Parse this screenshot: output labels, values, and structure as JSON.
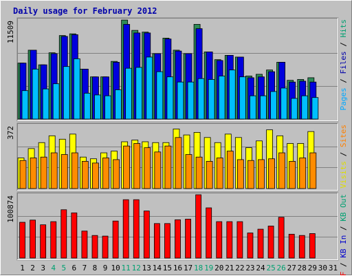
{
  "chart_data": {
    "type": "bar",
    "title": "Daily usage for February 2012",
    "categories": [
      "1",
      "2",
      "3",
      "4",
      "5",
      "6",
      "7",
      "8",
      "9",
      "10",
      "11",
      "12",
      "13",
      "14",
      "15",
      "16",
      "17",
      "18",
      "19",
      "20",
      "21",
      "22",
      "23",
      "24",
      "25",
      "26",
      "27",
      "28",
      "29",
      "30",
      "31"
    ],
    "weekend_days": [
      "4",
      "5",
      "11",
      "12",
      "18",
      "19",
      "25",
      "26"
    ],
    "panels": [
      {
        "name": "hits",
        "ymax_label": "11509",
        "ylim": [
          0,
          11509
        ],
        "right_labels": [
          {
            "text": "Pages",
            "color": "#00a8ff"
          },
          {
            "text": " / ",
            "color": "#000000"
          },
          {
            "text": "Files",
            "color": "#0000aa"
          },
          {
            "text": " / ",
            "color": "#000000"
          },
          {
            "text": "Hits",
            "color": "#00a070"
          }
        ],
        "series": [
          {
            "name": "Hits",
            "color": "#2e8b57",
            "values": [
              6500,
              8000,
              6300,
              7700,
              9700,
              9900,
              5800,
              4900,
              4900,
              6700,
              11500,
              10300,
              10100,
              7600,
              9400,
              8000,
              7600,
              11000,
              7800,
              6900,
              7400,
              7200,
              5000,
              5200,
              5700,
              6600,
              4500,
              4600,
              4800,
              null,
              null
            ]
          },
          {
            "name": "Files",
            "color": "#0000dd",
            "values": [
              6500,
              8000,
              6300,
              7600,
              9600,
              9800,
              5800,
              4900,
              4900,
              6600,
              11000,
              10000,
              10000,
              7600,
              9300,
              7900,
              7600,
              10500,
              7800,
              6800,
              7400,
              7200,
              4800,
              4900,
              5500,
              6600,
              4300,
              4400,
              4300,
              null,
              null
            ]
          },
          {
            "name": "Pages",
            "color": "#00bfff",
            "values": [
              3300,
              5800,
              3500,
              4100,
              6100,
              7000,
              3000,
              2800,
              2700,
              3400,
              5900,
              6000,
              7200,
              5500,
              4900,
              4300,
              4300,
              4700,
              4600,
              5000,
              5700,
              4900,
              2700,
              2700,
              3200,
              3600,
              2400,
              2700,
              2500,
              null,
              null
            ]
          }
        ]
      },
      {
        "name": "visits",
        "ymax_label": "372",
        "ylim": [
          0,
          372
        ],
        "right_labels": [
          {
            "text": "Visits",
            "color": "#dddd00"
          },
          {
            "text": " / ",
            "color": "#000000"
          },
          {
            "text": "Sites",
            "color": "#ff8000"
          }
        ],
        "series": [
          {
            "name": "Visits",
            "color": "#ffff00",
            "values": [
              180,
              235,
              270,
              310,
              290,
              320,
              185,
              175,
              210,
              220,
              275,
              285,
              275,
              270,
              270,
              350,
              315,
              330,
              300,
              270,
              320,
              300,
              240,
              280,
              345,
              310,
              265,
              265,
              335,
              null,
              null
            ]
          },
          {
            "name": "Sites",
            "color": "#ff8c00",
            "values": [
              165,
              180,
              185,
              210,
              200,
              210,
              160,
              150,
              180,
              170,
              250,
              265,
              240,
              215,
              250,
              300,
              200,
              185,
              160,
              180,
              220,
              170,
              165,
              170,
              175,
              210,
              160,
              180,
              210,
              null,
              null
            ]
          }
        ]
      },
      {
        "name": "kbytes",
        "ymax_label": "100874",
        "ylim": [
          0,
          100874
        ],
        "right_labels": [
          {
            "text": "KB F",
            "color": "#ee0000"
          },
          {
            "text": " / ",
            "color": "#000000"
          },
          {
            "text": "KB In",
            "color": "#0000cc"
          },
          {
            "text": " / ",
            "color": "#000000"
          },
          {
            "text": "KB Out",
            "color": "#00a070"
          }
        ],
        "series": [
          {
            "name": "KB F",
            "color": "#ff0000",
            "values": [
              57000,
              60500,
              53000,
              58000,
              77000,
              72000,
              43000,
              36000,
              35000,
              59000,
              93000,
              93000,
              75000,
              55000,
              55000,
              61000,
              62000,
              101000,
              80000,
              58000,
              58000,
              58000,
              40000,
              46000,
              51000,
              65000,
              38000,
              36000,
              39000,
              null,
              null
            ]
          }
        ]
      }
    ]
  }
}
